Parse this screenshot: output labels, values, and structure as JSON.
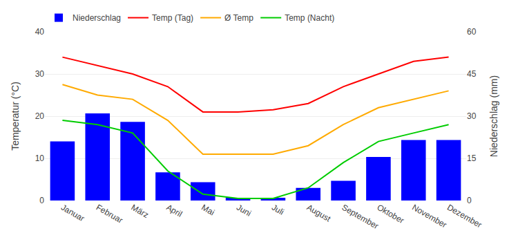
{
  "chart_data": {
    "type": "bar",
    "categories": [
      "Januar",
      "Februar",
      "März",
      "April",
      "Mai",
      "Juni",
      "Juli",
      "August",
      "September",
      "Oktober",
      "November",
      "Dezember"
    ],
    "series": [
      {
        "name": "Niederschlag",
        "type": "bar",
        "axis": "y2",
        "color": "#0000ff",
        "values": [
          21,
          31,
          28,
          10,
          6.5,
          1,
          1,
          4.5,
          7,
          15.5,
          21.5,
          21.5
        ]
      },
      {
        "name": "Temp (Tag)",
        "type": "line",
        "color": "#ff0000",
        "values": [
          34,
          32,
          30,
          27,
          21,
          21,
          21.5,
          23,
          27,
          30,
          33,
          34
        ]
      },
      {
        "name": "Ø Temp",
        "type": "line",
        "color": "#ffaa00",
        "values": [
          27.5,
          25,
          24,
          19,
          11,
          11,
          11,
          13,
          18,
          22,
          24,
          26
        ]
      },
      {
        "name": "Temp (Nacht)",
        "type": "line",
        "color": "#00cc00",
        "values": [
          19,
          18,
          16,
          7,
          1.5,
          0.5,
          0.5,
          3,
          9,
          14,
          16,
          18
        ]
      }
    ],
    "ylabel": "Temperatur (°C)",
    "y2label": "Niederschlag (mm)",
    "ylim": [
      0,
      40
    ],
    "yticks": [
      0,
      10,
      20,
      30,
      40
    ],
    "y2lim": [
      0,
      60
    ],
    "y2ticks": [
      0,
      15,
      30,
      45,
      60
    ],
    "grid": true,
    "legend": "top"
  }
}
